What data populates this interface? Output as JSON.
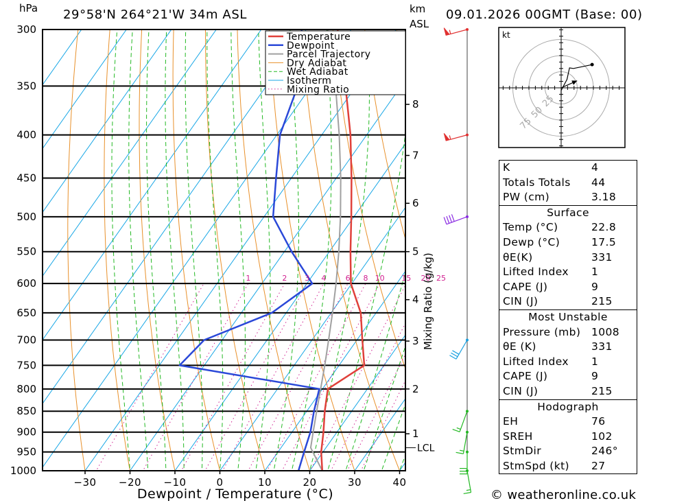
{
  "header": {
    "hpa_label": "hPa",
    "location": "29°58'N 264°21'W 34m ASL",
    "km_label": "km",
    "asl_label": "ASL",
    "datetime": "09.01.2026 00GMT (Base: 00)"
  },
  "footer": {
    "credit": "© weatheronline.co.uk"
  },
  "chart_data": {
    "type": "skew-t log-p diagram",
    "xlabel": "Dewpoint / Temperature (°C)",
    "ylabel": "hPa",
    "pressure_ticks": [
      300,
      350,
      400,
      450,
      500,
      550,
      600,
      650,
      700,
      750,
      800,
      850,
      900,
      950,
      1000
    ],
    "temp_ticks": [
      -30,
      -20,
      -10,
      0,
      10,
      20,
      30,
      40
    ],
    "height_ticks_km": [
      {
        "km": 1,
        "p": 904
      },
      {
        "km": 2,
        "p": 800
      },
      {
        "km": 3,
        "p": 702
      },
      {
        "km": 4,
        "p": 627
      },
      {
        "km": 5,
        "p": 550
      },
      {
        "km": 6,
        "p": 482
      },
      {
        "km": 7,
        "p": 423
      },
      {
        "km": 8,
        "p": 368
      }
    ],
    "lcl_label": "LCL",
    "lcl_p": 939,
    "mixing_ratio_label": "Mixing Ratio (g/kg)",
    "mixing_ratio_values": [
      "1",
      "2",
      "3",
      "4",
      "6",
      "8",
      "10",
      "15",
      "20",
      "25"
    ],
    "legend": [
      "Temperature",
      "Dewpoint",
      "Parcel Trajectory",
      "Dry Adiabat",
      "Wet Adiabat",
      "Isotherm",
      "Mixing Ratio"
    ],
    "legend_position": "top-right",
    "series": [
      {
        "name": "Temperature",
        "color": "#e0403a",
        "points": [
          {
            "p": 1000,
            "t": 22.8
          },
          {
            "p": 950,
            "t": 19.6
          },
          {
            "p": 900,
            "t": 17.0
          },
          {
            "p": 850,
            "t": 14.0
          },
          {
            "p": 800,
            "t": 11.2
          },
          {
            "p": 750,
            "t": 15.6
          },
          {
            "p": 700,
            "t": 11.2
          },
          {
            "p": 650,
            "t": 6.6
          },
          {
            "p": 600,
            "t": -0.2
          },
          {
            "p": 550,
            "t": -5.3
          },
          {
            "p": 500,
            "t": -10.6
          },
          {
            "p": 450,
            "t": -16.6
          },
          {
            "p": 400,
            "t": -23.6
          },
          {
            "p": 350,
            "t": -32.4
          },
          {
            "p": 300,
            "t": -43.0
          }
        ]
      },
      {
        "name": "Dewpoint",
        "color": "#2a48d8",
        "points": [
          {
            "p": 1000,
            "t": 17.5
          },
          {
            "p": 950,
            "t": 15.8
          },
          {
            "p": 900,
            "t": 14.1
          },
          {
            "p": 850,
            "t": 11.6
          },
          {
            "p": 800,
            "t": 9.3
          },
          {
            "p": 750,
            "t": -25.5
          },
          {
            "p": 700,
            "t": -24.0
          },
          {
            "p": 650,
            "t": -13.2
          },
          {
            "p": 600,
            "t": -8.8
          },
          {
            "p": 550,
            "t": -18.4
          },
          {
            "p": 500,
            "t": -28.0
          },
          {
            "p": 450,
            "t": -33.4
          },
          {
            "p": 400,
            "t": -39.3
          },
          {
            "p": 350,
            "t": -43.0
          },
          {
            "p": 300,
            "t": -51.0
          }
        ]
      },
      {
        "name": "Parcel Trajectory",
        "color": "#a0a0a0",
        "points": [
          {
            "p": 1000,
            "t": 22.8
          },
          {
            "p": 939,
            "t": 16.6
          },
          {
            "p": 900,
            "t": 14.7
          },
          {
            "p": 850,
            "t": 12.2
          },
          {
            "p": 800,
            "t": 9.6
          },
          {
            "p": 750,
            "t": 6.8
          },
          {
            "p": 700,
            "t": 3.7
          },
          {
            "p": 650,
            "t": 0.3
          },
          {
            "p": 600,
            "t": -3.5
          },
          {
            "p": 550,
            "t": -7.9
          },
          {
            "p": 500,
            "t": -13.0
          },
          {
            "p": 450,
            "t": -19.0
          },
          {
            "p": 400,
            "t": -26.1
          },
          {
            "p": 350,
            "t": -34.6
          },
          {
            "p": 300,
            "t": -45.2
          }
        ]
      }
    ],
    "hodograph": {
      "unit_label": "kt",
      "ring_labels": [
        "25",
        "50",
        "75"
      ],
      "track_kt": [
        [
          0,
          -13
        ],
        [
          0,
          -4
        ],
        [
          9,
          13
        ],
        [
          13,
          31
        ],
        [
          19,
          30
        ],
        [
          48,
          36
        ]
      ],
      "storm_motion_kt": [
        24.7,
        11.0
      ]
    },
    "wind_barbs": [
      {
        "p": 300,
        "dir_deg": 255,
        "spd_kt": 55,
        "color": "#e03030"
      },
      {
        "p": 400,
        "dir_deg": 255,
        "spd_kt": 55,
        "color": "#e03030"
      },
      {
        "p": 500,
        "dir_deg": 250,
        "spd_kt": 40,
        "color": "#8a2be2"
      },
      {
        "p": 700,
        "dir_deg": 210,
        "spd_kt": 30,
        "color": "#19a0e0"
      },
      {
        "p": 850,
        "dir_deg": 200,
        "spd_kt": 15,
        "color": "#22b822"
      },
      {
        "p": 900,
        "dir_deg": 190,
        "spd_kt": 15,
        "color": "#22b822"
      },
      {
        "p": 950,
        "dir_deg": 180,
        "spd_kt": 30,
        "color": "#22b822"
      },
      {
        "p": 1000,
        "dir_deg": 170,
        "spd_kt": 15,
        "color": "#22b822"
      }
    ]
  },
  "stats": {
    "indices": [
      {
        "label": "K",
        "value": "4"
      },
      {
        "label": "Totals Totals",
        "value": "44"
      },
      {
        "label": "PW (cm)",
        "value": "3.18"
      }
    ],
    "surface_title": "Surface",
    "surface": [
      {
        "label": "Temp (°C)",
        "value": "22.8"
      },
      {
        "label": "Dewp (°C)",
        "value": "17.5"
      },
      {
        "label": "θE(K)",
        "value": "331"
      },
      {
        "label": "Lifted Index",
        "value": "1"
      },
      {
        "label": "CAPE (J)",
        "value": "9"
      },
      {
        "label": "CIN (J)",
        "value": "215"
      }
    ],
    "unstable_title": "Most Unstable",
    "unstable": [
      {
        "label": "Pressure (mb)",
        "value": "1008"
      },
      {
        "label": "θE (K)",
        "value": "331"
      },
      {
        "label": "Lifted Index",
        "value": "1"
      },
      {
        "label": "CAPE (J)",
        "value": "9"
      },
      {
        "label": "CIN (J)",
        "value": "215"
      }
    ],
    "hodo_title": "Hodograph",
    "hodo": [
      {
        "label": "EH",
        "value": "76"
      },
      {
        "label": "SREH",
        "value": "102"
      },
      {
        "label": "StmDir",
        "value": "246°"
      },
      {
        "label": "StmSpd (kt)",
        "value": "27"
      }
    ]
  }
}
